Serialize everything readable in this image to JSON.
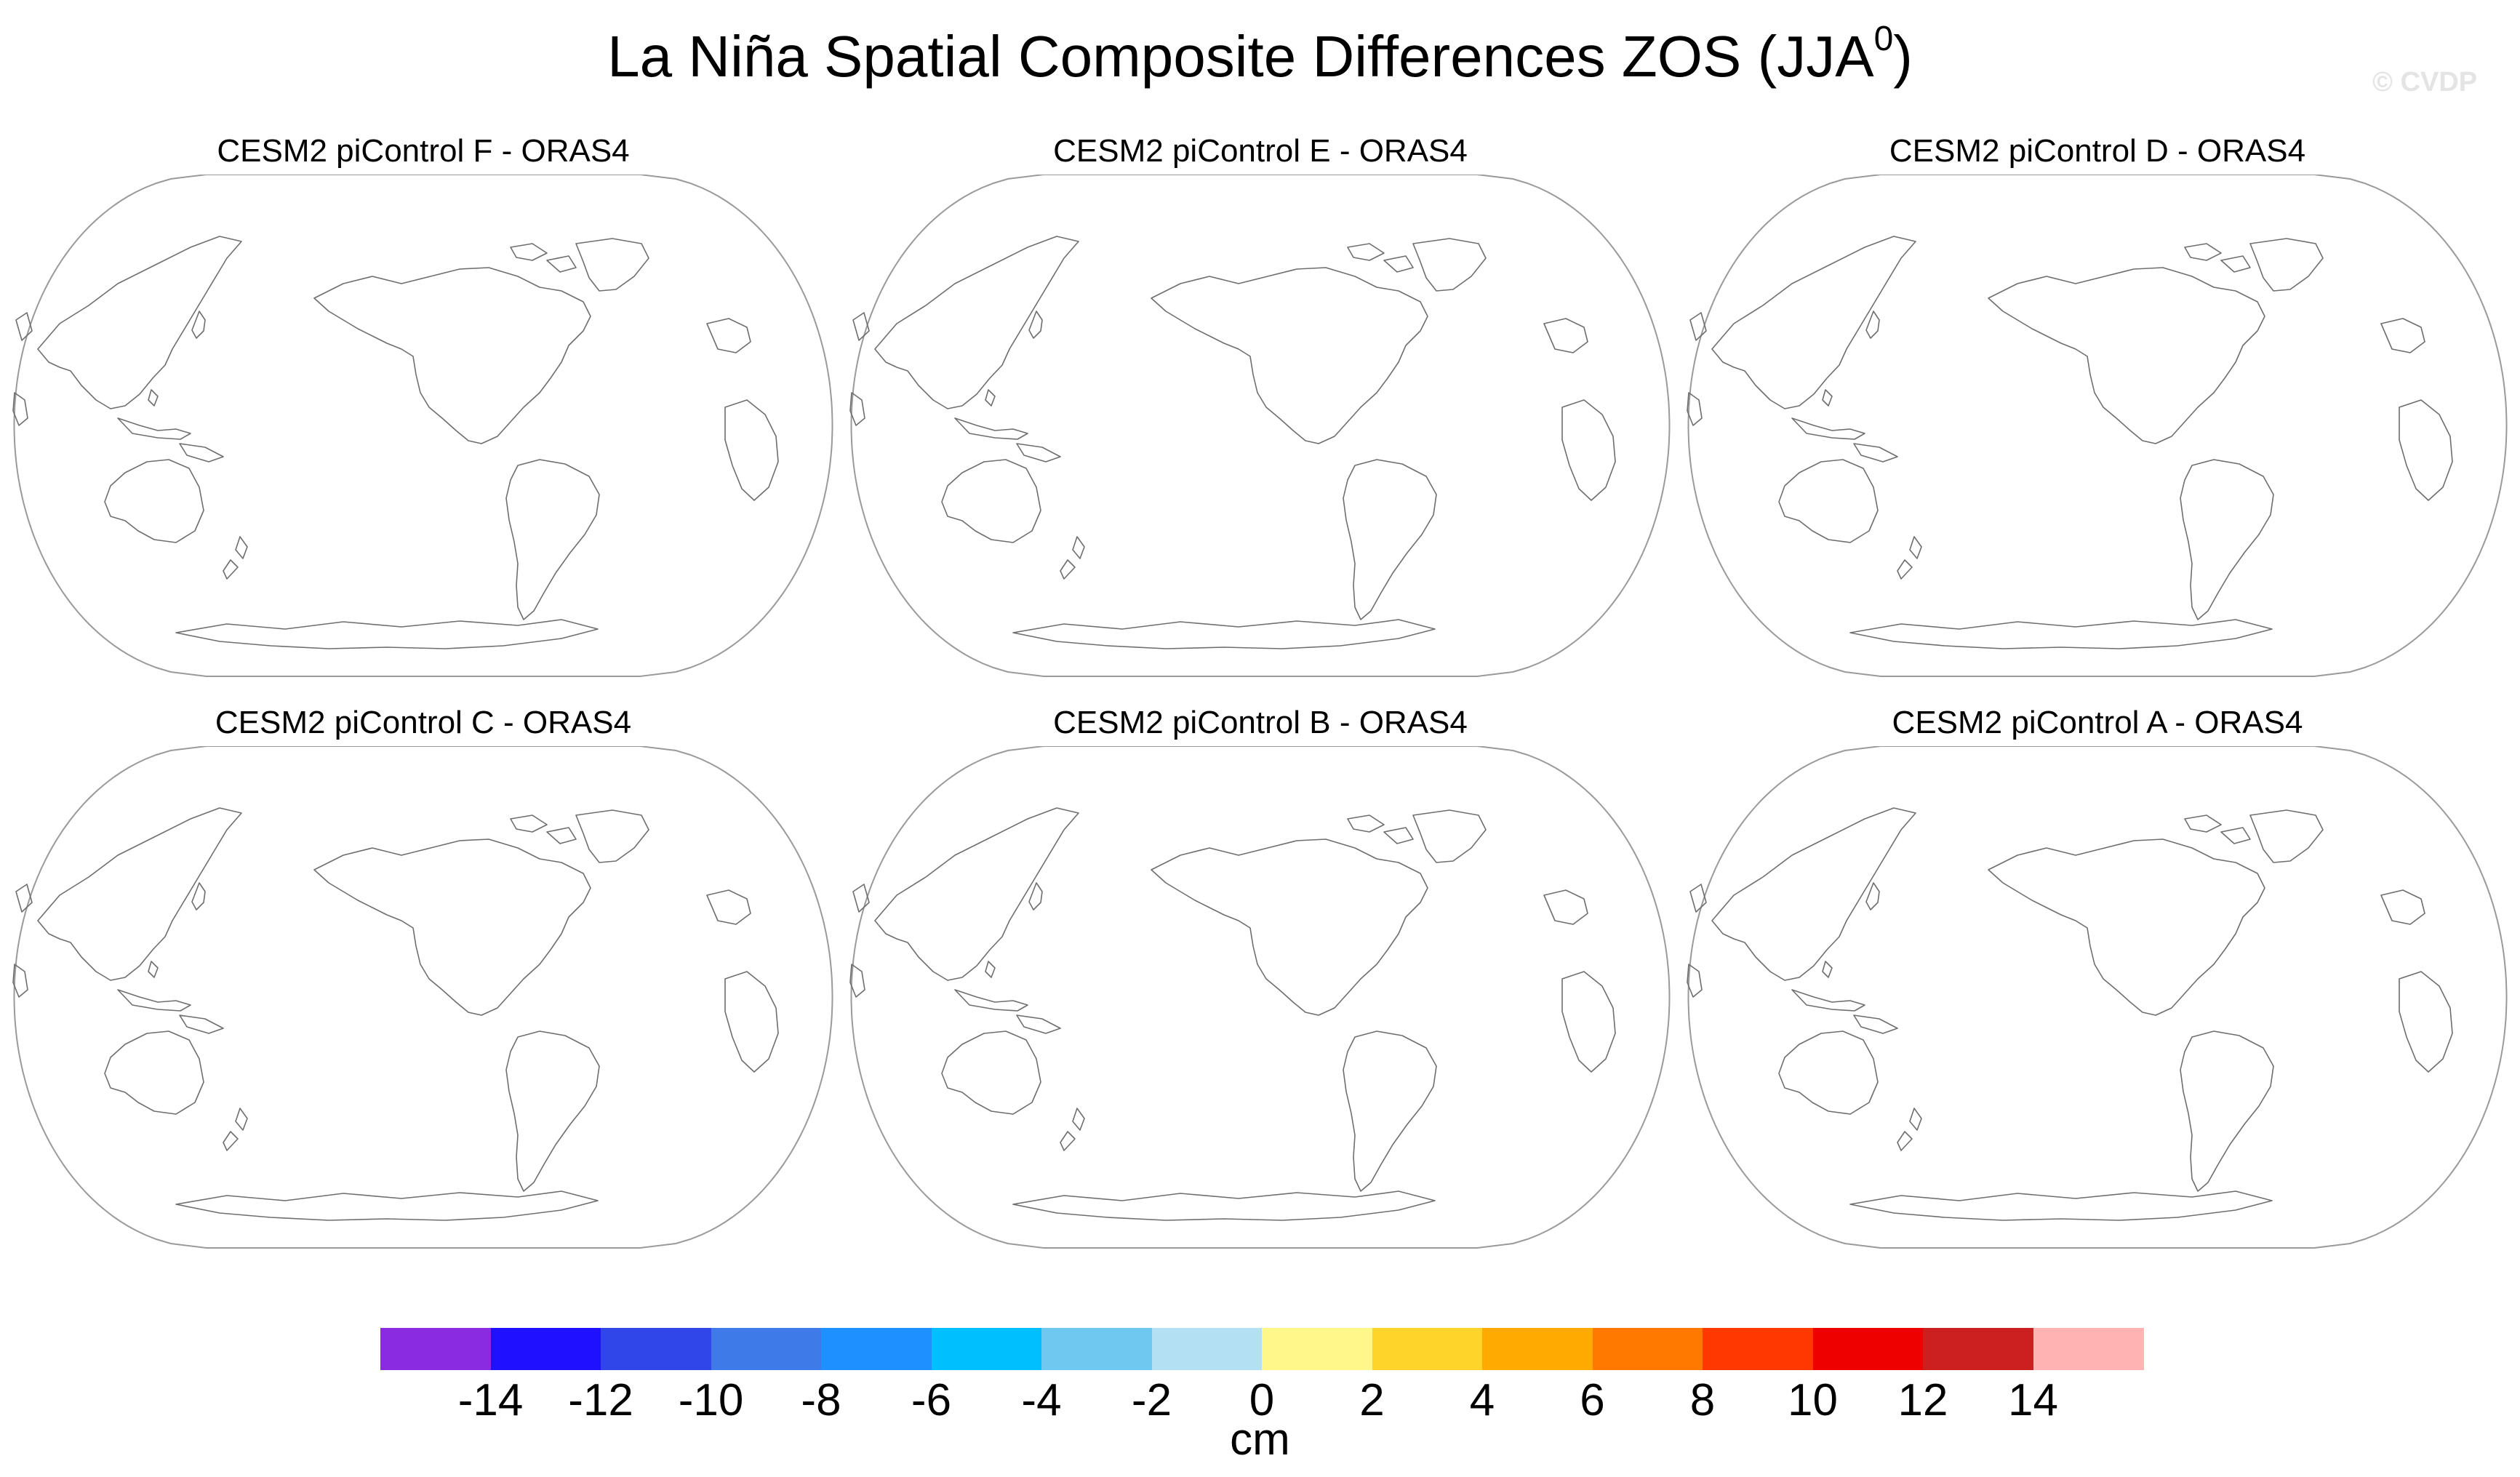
{
  "title": {
    "main": "La Niña Spatial Composite Differences ZOS (JJA",
    "superscript": "0",
    "close": ")"
  },
  "watermark": "© CVDP",
  "panels": [
    {
      "title": "CESM2 piControl F - ORAS4"
    },
    {
      "title": "CESM2 piControl E - ORAS4"
    },
    {
      "title": "CESM2 piControl D - ORAS4"
    },
    {
      "title": "CESM2 piControl C - ORAS4"
    },
    {
      "title": "CESM2 piControl B - ORAS4"
    },
    {
      "title": "CESM2 piControl A - ORAS4"
    }
  ],
  "colorbar": {
    "units": "cm",
    "labels": [
      "-14",
      "-12",
      "-10",
      "-8",
      "-6",
      "-4",
      "-2",
      "0",
      "2",
      "4",
      "6",
      "8",
      "10",
      "12",
      "14"
    ],
    "colors": [
      "#8a2be2",
      "#1f10ff",
      "#3046e8",
      "#3e7ae8",
      "#1e90ff",
      "#00bfff",
      "#6fc8f0",
      "#b4e0f4",
      "#fff78a",
      "#ffd42a",
      "#ffaa00",
      "#ff7800",
      "#ff3700",
      "#ee0000",
      "#cc2020",
      "#ffb3b3"
    ]
  }
}
